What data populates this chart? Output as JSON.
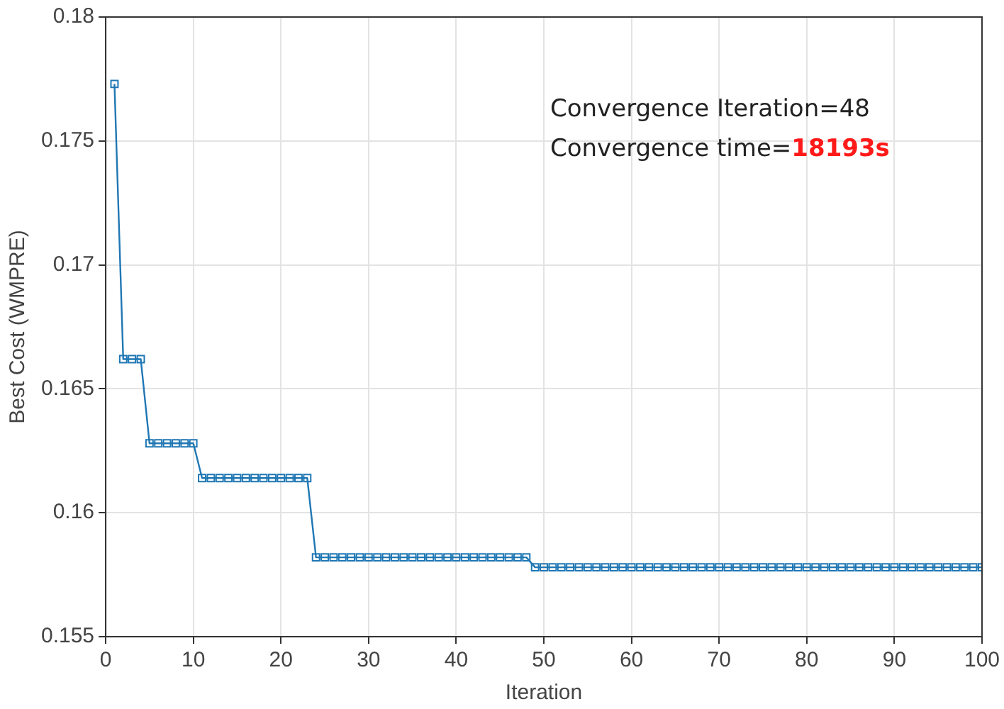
{
  "chart_data": {
    "type": "line",
    "xlabel": "Iteration",
    "ylabel": "Best Cost (WMPRE)",
    "annotations": [
      "Convergence Iteration=48",
      "Convergence time=18193s"
    ],
    "x": [
      1,
      2,
      3,
      4,
      5,
      6,
      7,
      8,
      9,
      10,
      11,
      12,
      13,
      14,
      15,
      16,
      17,
      18,
      19,
      20,
      21,
      22,
      23,
      24,
      25,
      26,
      27,
      28,
      29,
      30,
      31,
      32,
      33,
      34,
      35,
      36,
      37,
      38,
      39,
      40,
      41,
      42,
      43,
      44,
      45,
      46,
      47,
      48,
      49,
      50,
      51,
      52,
      53,
      54,
      55,
      56,
      57,
      58,
      59,
      60,
      61,
      62,
      63,
      64,
      65,
      66,
      67,
      68,
      69,
      70,
      71,
      72,
      73,
      74,
      75,
      76,
      77,
      78,
      79,
      80,
      81,
      82,
      83,
      84,
      85,
      86,
      87,
      88,
      89,
      90,
      91,
      92,
      93,
      94,
      95,
      96,
      97,
      98,
      99,
      100
    ],
    "series": [
      {
        "color": "#1f77b4",
        "values": [
          0.1773,
          0.1662,
          0.1662,
          0.1662,
          0.1628,
          0.1628,
          0.1628,
          0.1628,
          0.1628,
          0.1628,
          0.1614,
          0.1614,
          0.1614,
          0.1614,
          0.1614,
          0.1614,
          0.1614,
          0.1614,
          0.1614,
          0.1614,
          0.1614,
          0.1614,
          0.1614,
          0.1582,
          0.1582,
          0.1582,
          0.1582,
          0.1582,
          0.1582,
          0.1582,
          0.1582,
          0.1582,
          0.1582,
          0.1582,
          0.1582,
          0.1582,
          0.1582,
          0.1582,
          0.1582,
          0.1582,
          0.1582,
          0.1582,
          0.1582,
          0.1582,
          0.1582,
          0.1582,
          0.1582,
          0.1582,
          0.1578,
          0.1578,
          0.1578,
          0.1578,
          0.1578,
          0.1578,
          0.1578,
          0.1578,
          0.1578,
          0.1578,
          0.1578,
          0.1578,
          0.1578,
          0.1578,
          0.1578,
          0.1578,
          0.1578,
          0.1578,
          0.1578,
          0.1578,
          0.1578,
          0.1578,
          0.1578,
          0.1578,
          0.1578,
          0.1578,
          0.1578,
          0.1578,
          0.1578,
          0.1578,
          0.1578,
          0.1578,
          0.1578,
          0.1578,
          0.1578,
          0.1578,
          0.1578,
          0.1578,
          0.1578,
          0.1578,
          0.1578,
          0.1578,
          0.1578,
          0.1578,
          0.1578,
          0.1578,
          0.1578,
          0.1578,
          0.1578,
          0.1578,
          0.1578,
          0.1578
        ]
      }
    ],
    "xlim": [
      0,
      100
    ],
    "xticks": [
      0,
      10,
      20,
      30,
      40,
      50,
      60,
      70,
      80,
      90,
      100
    ],
    "ylim": [
      0.155,
      0.18
    ],
    "yticks": [
      0.155,
      0.16,
      0.165,
      0.17,
      0.175,
      0.18
    ],
    "grid": true,
    "legend": false,
    "marker": "square",
    "line_style": "solid"
  }
}
